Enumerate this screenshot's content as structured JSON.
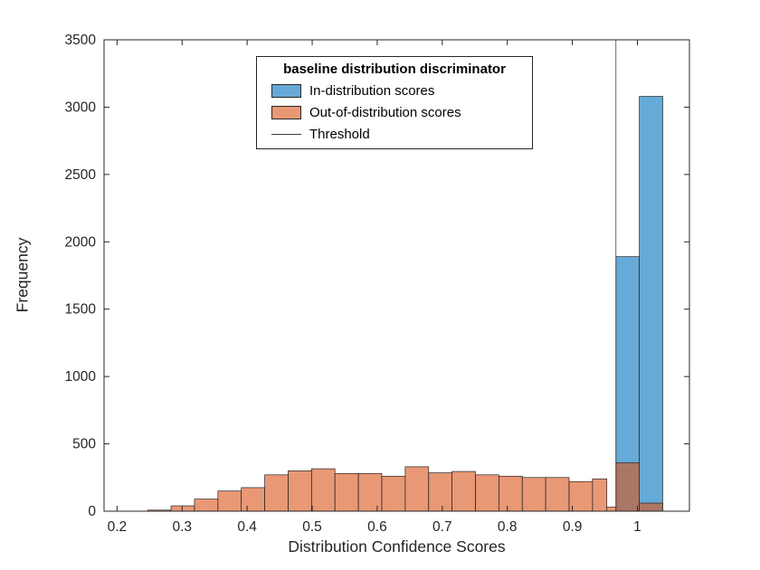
{
  "figure": {
    "background": "#ffffff"
  },
  "chart_data": {
    "type": "bar",
    "subtype": "overlaid-histogram",
    "title": "",
    "xlabel": "Distribution Confidence Scores",
    "ylabel": "Frequency",
    "xlim": [
      0.18,
      1.08
    ],
    "ylim": [
      0,
      3500
    ],
    "x_ticks": [
      0.2,
      0.3,
      0.4,
      0.5,
      0.6,
      0.7,
      0.8,
      0.9,
      1
    ],
    "x_tick_labels": [
      "0.2",
      "0.3",
      "0.4",
      "0.5",
      "0.6",
      "0.7",
      "0.8",
      "0.9",
      "1"
    ],
    "y_ticks": [
      0,
      500,
      1000,
      1500,
      2000,
      2500,
      3000,
      3500
    ],
    "y_tick_labels": [
      "0",
      "500",
      "1000",
      "1500",
      "2000",
      "2500",
      "3000",
      "3500"
    ],
    "grid": false,
    "axes_color": "#262626",
    "threshold_x": 0.967,
    "threshold_color": "#404040",
    "legend": {
      "title": "baseline distribution discriminator",
      "position": "north",
      "entries": [
        {
          "label": "In-distribution scores",
          "swatch": "#66AAD7",
          "type": "patch"
        },
        {
          "label": "Out-of-distribution scores",
          "swatch": "#E89875",
          "type": "patch"
        },
        {
          "label": "Threshold",
          "swatch": "#404040",
          "type": "line"
        }
      ]
    },
    "series": [
      {
        "name": "In-distribution scores",
        "color": "#0072BD",
        "alpha": 0.6,
        "edge_color": "#262626",
        "bars": [
          [
            0.967,
            1.003,
            1890
          ],
          [
            1.003,
            1.039,
            3080
          ]
        ]
      },
      {
        "name": "Out-of-distribution scores",
        "color": "#D95319",
        "alpha": 0.6,
        "edge_color": "#262626",
        "bars": [
          [
            0.247,
            0.283,
            8
          ],
          [
            0.283,
            0.319,
            40
          ],
          [
            0.319,
            0.355,
            90
          ],
          [
            0.355,
            0.391,
            150
          ],
          [
            0.391,
            0.427,
            175
          ],
          [
            0.427,
            0.463,
            270
          ],
          [
            0.463,
            0.499,
            300
          ],
          [
            0.499,
            0.535,
            315
          ],
          [
            0.535,
            0.571,
            280
          ],
          [
            0.571,
            0.607,
            280
          ],
          [
            0.607,
            0.643,
            260
          ],
          [
            0.643,
            0.679,
            330
          ],
          [
            0.679,
            0.715,
            285
          ],
          [
            0.715,
            0.751,
            295
          ],
          [
            0.751,
            0.787,
            270
          ],
          [
            0.787,
            0.823,
            260
          ],
          [
            0.823,
            0.859,
            250
          ],
          [
            0.859,
            0.895,
            250
          ],
          [
            0.895,
            0.931,
            220
          ],
          [
            0.931,
            0.953,
            240
          ],
          [
            0.953,
            0.967,
            30
          ],
          [
            0.967,
            1.003,
            360
          ],
          [
            1.003,
            1.039,
            60
          ]
        ]
      }
    ]
  }
}
